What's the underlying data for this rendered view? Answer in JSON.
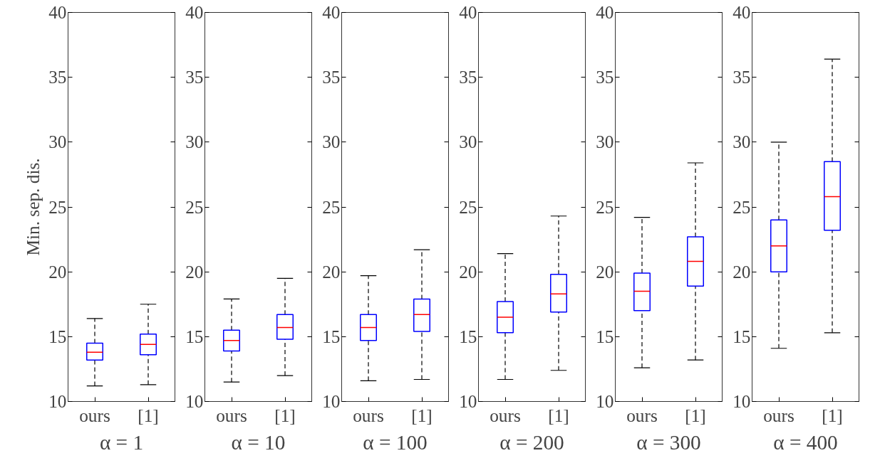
{
  "chart_data": [
    {
      "type": "box",
      "categories": [
        "ours",
        "[1]"
      ],
      "xlabel": "α = 1",
      "ylabel": "Min. sep. dis.",
      "ylim": [
        10,
        40
      ],
      "yticks": [
        10,
        15,
        20,
        25,
        30,
        35,
        40
      ],
      "series": [
        {
          "color": "#0000ff",
          "boxes": [
            {
              "low": 11.2,
              "q1": 13.2,
              "median": 13.8,
              "q3": 14.5,
              "high": 16.4
            },
            {
              "low": 11.3,
              "q1": 13.6,
              "median": 14.4,
              "q3": 15.2,
              "high": 17.5
            }
          ]
        }
      ]
    },
    {
      "type": "box",
      "categories": [
        "ours",
        "[1]"
      ],
      "xlabel": "α = 10",
      "ylim": [
        10,
        40
      ],
      "yticks": [
        10,
        15,
        20,
        25,
        30,
        35,
        40
      ],
      "series": [
        {
          "color": "#0000ff",
          "boxes": [
            {
              "low": 11.5,
              "q1": 13.9,
              "median": 14.7,
              "q3": 15.5,
              "high": 17.9
            },
            {
              "low": 12.0,
              "q1": 14.8,
              "median": 15.7,
              "q3": 16.7,
              "high": 19.5
            }
          ]
        }
      ]
    },
    {
      "type": "box",
      "categories": [
        "ours",
        "[1]"
      ],
      "xlabel": "α = 100",
      "ylim": [
        10,
        40
      ],
      "yticks": [
        10,
        15,
        20,
        25,
        30,
        35,
        40
      ],
      "series": [
        {
          "color": "#0000ff",
          "boxes": [
            {
              "low": 11.6,
              "q1": 14.7,
              "median": 15.7,
              "q3": 16.7,
              "high": 19.7
            },
            {
              "low": 11.7,
              "q1": 15.4,
              "median": 16.7,
              "q3": 17.9,
              "high": 21.7
            }
          ]
        }
      ]
    },
    {
      "type": "box",
      "categories": [
        "ours",
        "[1]"
      ],
      "xlabel": "α = 200",
      "ylim": [
        10,
        40
      ],
      "yticks": [
        10,
        15,
        20,
        25,
        30,
        35,
        40
      ],
      "series": [
        {
          "color": "#0000ff",
          "boxes": [
            {
              "low": 11.7,
              "q1": 15.3,
              "median": 16.5,
              "q3": 17.7,
              "high": 21.4
            },
            {
              "low": 12.4,
              "q1": 16.9,
              "median": 18.3,
              "q3": 19.8,
              "high": 24.3
            }
          ]
        }
      ]
    },
    {
      "type": "box",
      "categories": [
        "ours",
        "[1]"
      ],
      "xlabel": "α = 300",
      "ylim": [
        10,
        40
      ],
      "yticks": [
        10,
        15,
        20,
        25,
        30,
        35,
        40
      ],
      "series": [
        {
          "color": "#0000ff",
          "boxes": [
            {
              "low": 12.6,
              "q1": 17.0,
              "median": 18.5,
              "q3": 19.9,
              "high": 24.2
            },
            {
              "low": 13.2,
              "q1": 18.9,
              "median": 20.8,
              "q3": 22.7,
              "high": 28.4
            }
          ]
        }
      ]
    },
    {
      "type": "box",
      "categories": [
        "ours",
        "[1]"
      ],
      "xlabel": "α = 400",
      "ylim": [
        10,
        40
      ],
      "yticks": [
        10,
        15,
        20,
        25,
        30,
        35,
        40
      ],
      "series": [
        {
          "color": "#0000ff",
          "boxes": [
            {
              "low": 14.1,
              "q1": 20.0,
              "median": 22.0,
              "q3": 24.0,
              "high": 30.0
            },
            {
              "low": 15.3,
              "q1": 23.2,
              "median": 25.8,
              "q3": 28.5,
              "high": 36.4
            }
          ]
        }
      ]
    }
  ]
}
